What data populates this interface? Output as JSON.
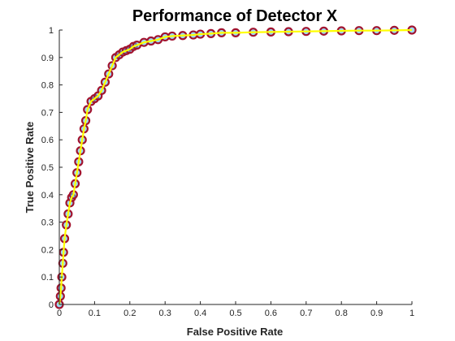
{
  "chart_data": {
    "type": "line",
    "title": "Performance of Detector X",
    "xlabel": "False Positive Rate",
    "ylabel": "True Positive Rate",
    "xlim": [
      0,
      1
    ],
    "ylim": [
      0,
      1
    ],
    "xticks": [
      "0",
      "0.1",
      "0.2",
      "0.3",
      "0.4",
      "0.5",
      "0.6",
      "0.7",
      "0.8",
      "0.9",
      "1"
    ],
    "yticks": [
      "0",
      "0.1",
      "0.2",
      "0.3",
      "0.4",
      "0.5",
      "0.6",
      "0.7",
      "0.8",
      "0.9",
      "1"
    ],
    "grid": false,
    "legend": "none",
    "colors": {
      "marker_edge": "#a2142f",
      "marker_fill": "#4dbeee",
      "line": "#ffff00",
      "axis": "#262626"
    },
    "series": [
      {
        "x": [
          0,
          0.003,
          0.005,
          0.007,
          0.01,
          0.012,
          0.015,
          0.02,
          0.025,
          0.03,
          0.035,
          0.04,
          0.045,
          0.05,
          0.055,
          0.06,
          0.065,
          0.07,
          0.075,
          0.08,
          0.09,
          0.1,
          0.11,
          0.12,
          0.13,
          0.14,
          0.15,
          0.16,
          0.17,
          0.18,
          0.19,
          0.2,
          0.21,
          0.22,
          0.24,
          0.26,
          0.28,
          0.3,
          0.32,
          0.35,
          0.38,
          0.4,
          0.43,
          0.46,
          0.5,
          0.55,
          0.6,
          0.65,
          0.7,
          0.75,
          0.8,
          0.85,
          0.9,
          0.95,
          1.0
        ],
        "y": [
          0,
          0.03,
          0.06,
          0.1,
          0.15,
          0.19,
          0.24,
          0.29,
          0.33,
          0.37,
          0.39,
          0.4,
          0.44,
          0.48,
          0.52,
          0.56,
          0.6,
          0.64,
          0.67,
          0.71,
          0.74,
          0.75,
          0.76,
          0.78,
          0.81,
          0.84,
          0.87,
          0.9,
          0.91,
          0.92,
          0.925,
          0.93,
          0.94,
          0.945,
          0.955,
          0.96,
          0.965,
          0.975,
          0.978,
          0.98,
          0.982,
          0.985,
          0.987,
          0.99,
          0.99,
          0.992,
          0.993,
          0.994,
          0.995,
          0.996,
          0.997,
          0.998,
          0.998,
          0.999,
          1.0
        ]
      }
    ]
  }
}
